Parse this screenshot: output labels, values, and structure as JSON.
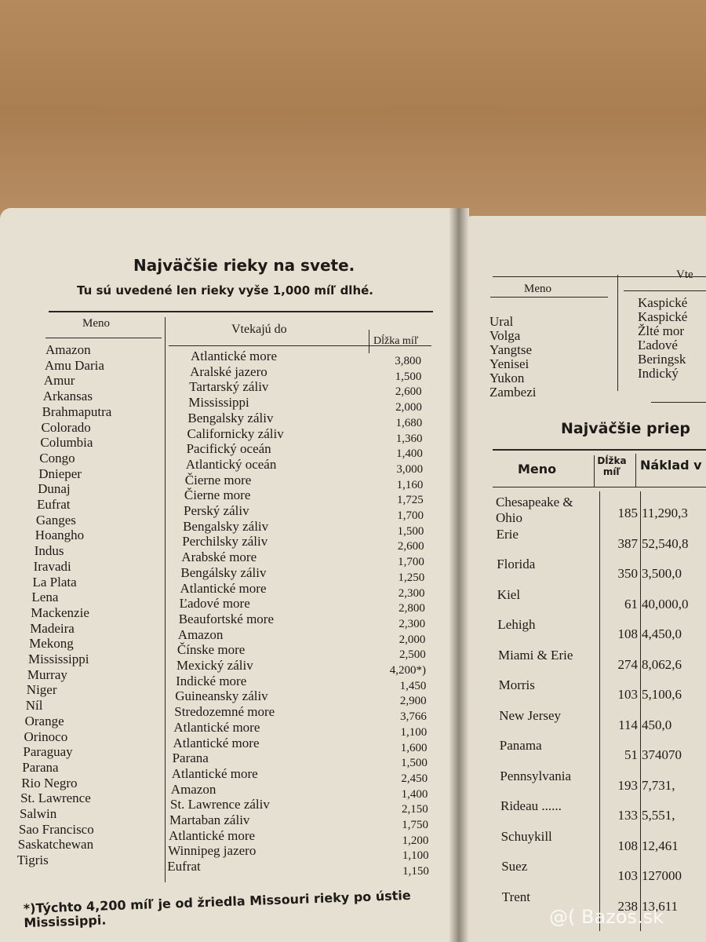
{
  "left_page": {
    "title": "Najväčšie rieky na svete.",
    "subtitle": "Tu sú uvedené len rieky vyše 1,000 míľ dlhé.",
    "table": {
      "headers": [
        "Meno",
        "Vtekajú do",
        "Dĺžka míľ"
      ],
      "rows": [
        [
          "Amazon",
          "Atlantické more",
          "3,800"
        ],
        [
          "Amu Daria",
          "Aralské jazero",
          "1,500"
        ],
        [
          "Amur",
          "Tartarský záliv",
          "2,600"
        ],
        [
          "Arkansas",
          "Mississippi",
          "2,000"
        ],
        [
          "Brahmaputra",
          "Bengalsky záliv",
          "1,680"
        ],
        [
          "Colorado",
          "Californicky záliv",
          "1,360"
        ],
        [
          "Columbia",
          "Pacifický oceán",
          "1,400"
        ],
        [
          "Congo",
          "Atlantický oceán",
          "3,000"
        ],
        [
          "Dnieper",
          "Čierne more",
          "1,160"
        ],
        [
          "Dunaj",
          "Čierne more",
          "1,725"
        ],
        [
          "Eufrat",
          "Perský záliv",
          "1,700"
        ],
        [
          "Ganges",
          "Bengalsky záliv",
          "1,500"
        ],
        [
          "Hoangho",
          "Perchilsky záliv",
          "2,600"
        ],
        [
          "Indus",
          "Arabské more",
          "1,700"
        ],
        [
          "Iravadi",
          "Bengálsky záliv",
          "1,250"
        ],
        [
          "La Plata",
          "Atlantické more",
          "2,300"
        ],
        [
          "Lena",
          "Ľadové more",
          "2,800"
        ],
        [
          "Mackenzie",
          "Beaufortské more",
          "2,300"
        ],
        [
          "Madeira",
          "Amazon",
          "2,000"
        ],
        [
          "Mekong",
          "Čínske more",
          "2,500"
        ],
        [
          "Mississippi",
          "Mexický záliv",
          "4,200*)"
        ],
        [
          "Murray",
          "Indické more",
          "1,450"
        ],
        [
          "Niger",
          "Guineansky záliv",
          "2,900"
        ],
        [
          "Níl",
          "Stredozemné more",
          "3,766"
        ],
        [
          "Orange",
          "Atlantické more",
          "1,100"
        ],
        [
          "Orinoco",
          "Atlantické more",
          "1,600"
        ],
        [
          "Paraguay",
          "Parana",
          "1,500"
        ],
        [
          "Parana",
          "Atlantické more",
          "2,450"
        ],
        [
          "Rio Negro",
          "Amazon",
          "1,400"
        ],
        [
          "St. Lawrence",
          "St. Lawrence záliv",
          "2,150"
        ],
        [
          "Salwin",
          "Martaban záliv",
          "1,750"
        ],
        [
          "Sao Francisco",
          "Atlantické more",
          "1,200"
        ],
        [
          "Saskatchewan",
          "Winnipeg jazero",
          "1,100"
        ],
        [
          "Tigris",
          "Eufrat",
          "1,150"
        ]
      ]
    },
    "footnote": "*)Týchto 4,200 míľ je od žriedla Missouri rieky po ústie Mississippi."
  },
  "right_page": {
    "rivers_table": {
      "headers": [
        "Meno",
        "Vte"
      ],
      "rows": [
        [
          "Ural",
          "Kaspické"
        ],
        [
          "Volga",
          "Kaspické"
        ],
        [
          "Yangtse",
          "Žlté mor"
        ],
        [
          "Yenisei",
          "Ľadové"
        ],
        [
          "Yukon",
          "Beringsk"
        ],
        [
          "Zambezi",
          "Indický"
        ]
      ]
    },
    "canals_title": "Najväčšie priep",
    "canals_table": {
      "headers": [
        "Meno",
        "Dĺžka míľ",
        "Náklad v"
      ],
      "rows": [
        [
          "Chesapeake & Ohio",
          "185",
          "11,290,3"
        ],
        [
          "Erie",
          "387",
          "52,540,8"
        ],
        [
          "Florida",
          "350",
          "3,500,0"
        ],
        [
          "Kiel",
          "61",
          "40,000,0"
        ],
        [
          "Lehigh",
          "108",
          "4,450,0"
        ],
        [
          "Miami & Erie",
          "274",
          "8,062,6"
        ],
        [
          "Morris",
          "103",
          "5,100,6"
        ],
        [
          "New Jersey",
          "114",
          "450,0"
        ],
        [
          "Panama",
          "51",
          "374070"
        ],
        [
          "Pennsylvania",
          "193",
          "7,731,"
        ],
        [
          "Rideau ......",
          "133",
          "5,551,"
        ],
        [
          "Schuykill",
          "108",
          "12,461"
        ],
        [
          "Suez",
          "103",
          "127000"
        ],
        [
          "Trent",
          "238",
          "13,611"
        ]
      ]
    }
  },
  "watermark": "@( Bazos.sk"
}
